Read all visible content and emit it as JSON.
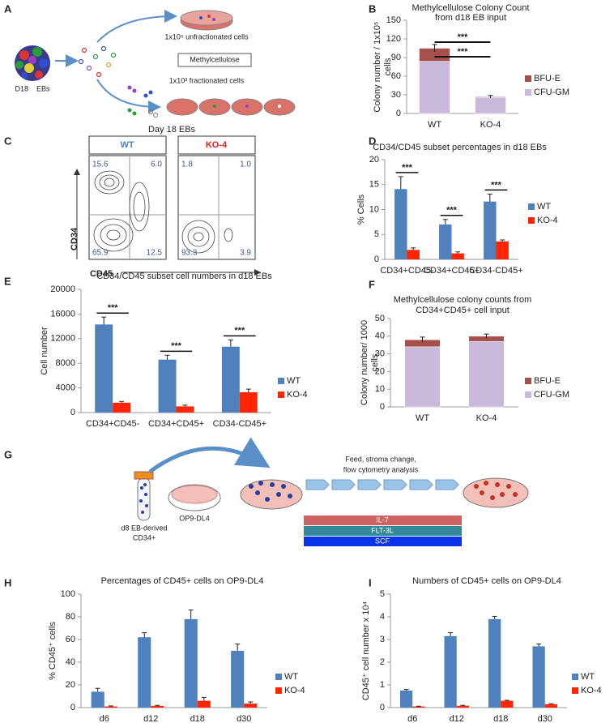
{
  "panels": {
    "a": {
      "letter": "A",
      "eb_label": "D18    EBs",
      "top_label": "1x10⁵ unfractionated cells",
      "medium": "Methylcellulose",
      "bottom_label": "1x10³ fractionated cells"
    },
    "c": {
      "letter": "C",
      "title": "Day 18 EBs",
      "plots": [
        {
          "name": "WT",
          "quadrants": [
            "15.6",
            "6.0",
            "65.9",
            "12.5"
          ]
        },
        {
          "name": "KO-4",
          "quadrants": [
            "1.8",
            "1.0",
            "93.3",
            "3.9"
          ]
        }
      ],
      "y_label": "CD34",
      "x_label": "CD45"
    },
    "g": {
      "letter": "G",
      "tube_label": [
        "d8 EB-derived",
        "CD34+"
      ],
      "stroma_label": "OP9-DL4",
      "process_label": [
        "Feed, stroma change,",
        "flow cytometry analysis"
      ],
      "factors": [
        "IL-7",
        "FLT-3L",
        "SCF"
      ]
    }
  },
  "chart_data": [
    {
      "panel": "B",
      "type": "stacked_bar",
      "title": "Methylcellulose Colony Count",
      "subtitle": "from d18 EB input",
      "ylabel": [
        "Colony number / 1x10⁵",
        "cells"
      ],
      "categories": [
        "WT",
        "KO-4"
      ],
      "series": [
        {
          "name": "CFU-GM",
          "color": "#c9badb",
          "values": [
            84,
            26
          ]
        },
        {
          "name": "BFU-E",
          "color": "#a5504c",
          "values": [
            21,
            1
          ],
          "errors": [
            6,
            2
          ]
        }
      ],
      "ylim": [
        0,
        150
      ],
      "yticks": [
        0,
        30,
        60,
        90,
        120,
        150
      ],
      "grid": false,
      "legend": "right",
      "annotations": [
        "***",
        "***"
      ]
    },
    {
      "panel": "D",
      "type": "bar",
      "title": "CD34/CD45 subset percentages in d18 EBs",
      "ylabel": "% Cells",
      "categories": [
        "CD34+CD45-",
        "CD34+CD45+",
        "CD34-CD45+"
      ],
      "series": [
        {
          "name": "WT",
          "color": "#4f81bd",
          "values": [
            14.1,
            7.0,
            11.6
          ],
          "errors": [
            2.5,
            1.0,
            1.5
          ]
        },
        {
          "name": "KO-4",
          "color": "#ff2500",
          "values": [
            1.9,
            1.2,
            3.6
          ],
          "errors": [
            0.4,
            0.3,
            0.3
          ]
        }
      ],
      "ylim": [
        0,
        20
      ],
      "yticks": [
        0,
        5,
        10,
        15,
        20
      ],
      "grid": false,
      "legend": "right",
      "annotations": [
        "***",
        "***",
        "***"
      ]
    },
    {
      "panel": "E",
      "type": "bar",
      "title": "CD34/CD45 subset cell numbers in d18 EBs",
      "ylabel": "Cell number",
      "categories": [
        "CD34+CD45-",
        "CD34+CD45+",
        "CD34-CD45+"
      ],
      "series": [
        {
          "name": "WT",
          "color": "#4f81bd",
          "values": [
            14300,
            8600,
            10700
          ],
          "errors": [
            1200,
            700,
            1100
          ]
        },
        {
          "name": "KO-4",
          "color": "#ff2500",
          "values": [
            1600,
            1000,
            3300
          ],
          "errors": [
            200,
            200,
            500
          ]
        }
      ],
      "ylim": [
        0,
        20000
      ],
      "yticks": [
        0,
        4000,
        8000,
        12000,
        16000,
        20000
      ],
      "grid": false,
      "legend": "right",
      "annotations": [
        "***",
        "***",
        "***"
      ]
    },
    {
      "panel": "F",
      "type": "stacked_bar",
      "title": "Methylcellulose colony counts from",
      "subtitle": "CD34+CD45+ cell input",
      "ylabel": [
        "Colony number/ 1000",
        "cells"
      ],
      "categories": [
        "WT",
        "KO-4"
      ],
      "series": [
        {
          "name": "CFU-GM",
          "color": "#c9badb",
          "values": [
            34,
            37
          ]
        },
        {
          "name": "BFU-E",
          "color": "#a5504c",
          "values": [
            4,
            3
          ],
          "errors": [
            1.5,
            1.2
          ]
        }
      ],
      "ylim": [
        0,
        50
      ],
      "yticks": [
        0,
        10,
        20,
        30,
        40,
        50
      ],
      "grid": false,
      "legend": "right"
    },
    {
      "panel": "H",
      "type": "bar",
      "title": "Percentages of CD45+ cells on OP9-DL4",
      "ylabel": "% CD45⁺ cells",
      "categories": [
        "d6",
        "d12",
        "d18",
        "d30"
      ],
      "series": [
        {
          "name": "WT",
          "color": "#4f81bd",
          "values": [
            14,
            62,
            78,
            50
          ],
          "errors": [
            3,
            4,
            8,
            6
          ]
        },
        {
          "name": "KO-4",
          "color": "#ff2500",
          "values": [
            1,
            1.5,
            6,
            3.5
          ],
          "errors": [
            0.5,
            0.5,
            3,
            1.5
          ]
        }
      ],
      "ylim": [
        0,
        100
      ],
      "yticks": [
        0,
        20,
        40,
        60,
        80,
        100
      ],
      "grid": false,
      "legend": "right"
    },
    {
      "panel": "I",
      "type": "bar",
      "title": "Numbers of CD45+ cells on OP9-DL4",
      "ylabel": "CD45⁺ cell number x 10⁴",
      "categories": [
        "d6",
        "d12",
        "d18",
        "d30"
      ],
      "series": [
        {
          "name": "WT",
          "color": "#4f81bd",
          "values": [
            0.75,
            3.15,
            3.9,
            2.7
          ],
          "errors": [
            0.05,
            0.15,
            0.12,
            0.1
          ]
        },
        {
          "name": "KO-4",
          "color": "#ff2500",
          "values": [
            0.05,
            0.08,
            0.3,
            0.15
          ],
          "errors": [
            0.01,
            0.02,
            0.02,
            0.02
          ]
        }
      ],
      "ylim": [
        0,
        5
      ],
      "yticks": [
        0,
        1,
        2,
        3,
        4,
        5
      ],
      "grid": false,
      "legend": "right"
    }
  ]
}
